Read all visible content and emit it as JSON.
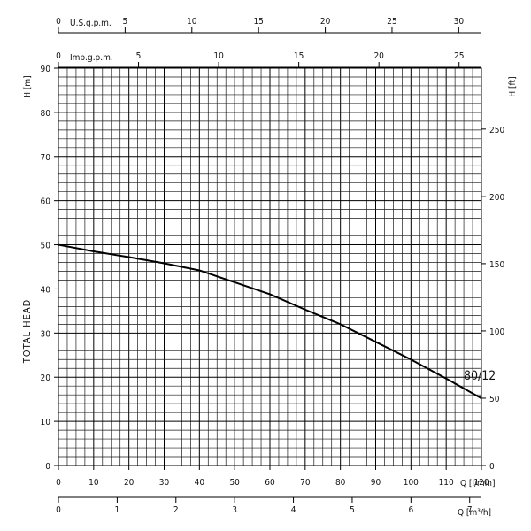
{
  "chart_data": {
    "type": "line",
    "ylabel_left": "TOTAL HEAD",
    "h_m_label": "H [m]",
    "h_ft_label": "H [ft]",
    "q_lmin_label": "Q [l/min]",
    "q_m3h_label": "Q [m³/h]",
    "usgpm_label": "U.S.g.p.m.",
    "impgpm_label": "Imp.g.p.m.",
    "xlim_lmin": [
      0,
      120
    ],
    "ylim_m": [
      0,
      90
    ],
    "grid": true,
    "x_ticks_lmin": [
      "0",
      "10",
      "20",
      "30",
      "40",
      "50",
      "60",
      "70",
      "80",
      "90",
      "100",
      "110",
      "120"
    ],
    "y_ticks_m": [
      "0",
      "10",
      "20",
      "30",
      "40",
      "50",
      "60",
      "70",
      "80",
      "90"
    ],
    "y_ticks_ft": [
      "0",
      "50",
      "100",
      "150",
      "200",
      "250"
    ],
    "x_ticks_m3h": [
      "0",
      "1",
      "2",
      "3",
      "4",
      "5",
      "6",
      "7"
    ],
    "x_ticks_usgpm": [
      "0",
      "5",
      "10",
      "15",
      "20",
      "25",
      "30"
    ],
    "x_ticks_impgpm": [
      "0",
      "5",
      "10",
      "15",
      "20",
      "25"
    ],
    "series": [
      {
        "name": "80/12",
        "x": [
          0,
          10,
          20,
          30,
          40,
          50,
          60,
          70,
          80,
          90,
          100,
          110,
          120
        ],
        "y": [
          50,
          48.5,
          47.2,
          45.8,
          44.2,
          41.5,
          38.8,
          35.3,
          32,
          28,
          24,
          19.7,
          15.2
        ]
      }
    ]
  }
}
